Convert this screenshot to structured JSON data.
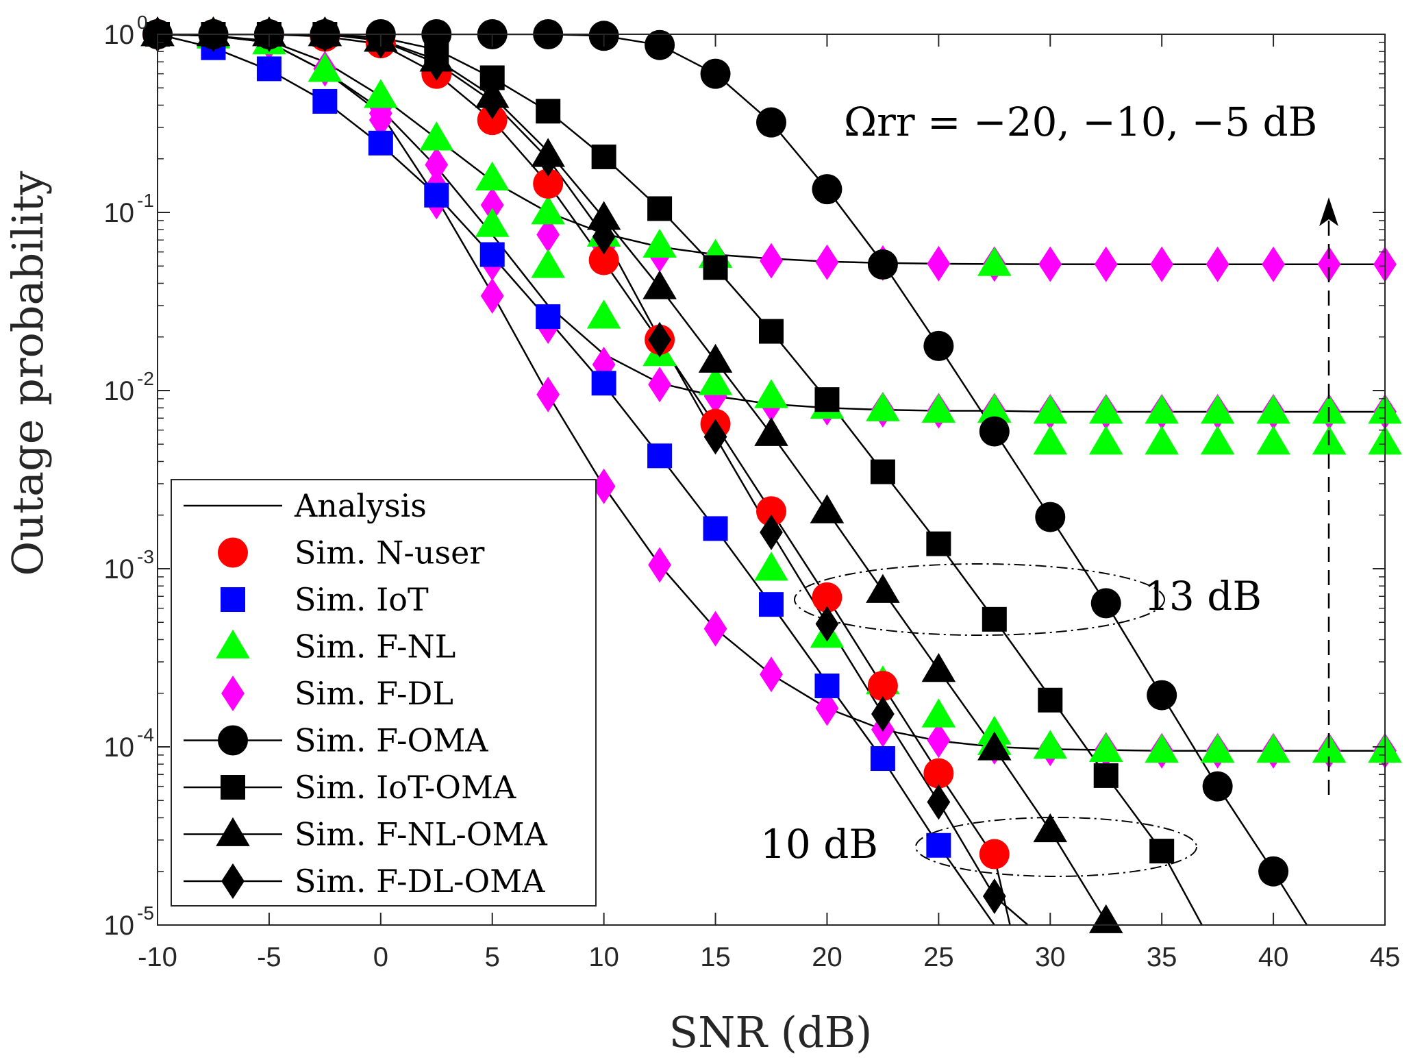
{
  "chart_data": {
    "type": "line",
    "xlabel": "SNR (dB)",
    "ylabel": "Outage probability",
    "xlim": [
      -10,
      45
    ],
    "ylim": [
      1e-05,
      1
    ],
    "yscale": "log",
    "x_ticks": [
      -10,
      -5,
      0,
      5,
      10,
      15,
      20,
      25,
      30,
      35,
      40,
      45
    ],
    "x_tick_labels": [
      "-10",
      "-5",
      "0",
      "5",
      "10",
      "15",
      "20",
      "25",
      "30",
      "35",
      "40",
      "45"
    ],
    "y_ticks": [
      {
        "value": 1e-05,
        "base": "10",
        "exp": "-5"
      },
      {
        "value": 0.0001,
        "base": "10",
        "exp": "-4"
      },
      {
        "value": 0.001,
        "base": "10",
        "exp": "-3"
      },
      {
        "value": 0.01,
        "base": "10",
        "exp": "-2"
      },
      {
        "value": 0.1,
        "base": "10",
        "exp": "-1"
      },
      {
        "value": 1,
        "base": "10",
        "exp": "0"
      }
    ],
    "grid": false,
    "legend_position": "bottom-left",
    "legend": [
      {
        "label": "Analysis",
        "marker": "none",
        "color": "#000000",
        "line": true
      },
      {
        "label": "Sim.  N-user",
        "marker": "circle",
        "color": "#ff0000",
        "line": false
      },
      {
        "label": "Sim.  IoT",
        "marker": "square",
        "color": "#0000ff",
        "line": false
      },
      {
        "label": "Sim.  F-NL",
        "marker": "triangle",
        "color": "#00ff00",
        "line": false
      },
      {
        "label": "Sim.  F-DL",
        "marker": "diamond",
        "color": "#ff00ff",
        "line": false
      },
      {
        "label": "Sim.  F-OMA",
        "marker": "circle",
        "color": "#000000",
        "line": true
      },
      {
        "label": "Sim.  IoT-OMA",
        "marker": "square",
        "color": "#000000",
        "line": true
      },
      {
        "label": "Sim.  F-NL-OMA",
        "marker": "triangle",
        "color": "#000000",
        "line": true
      },
      {
        "label": "Sim.  F-DL-OMA",
        "marker": "diamond",
        "color": "#000000",
        "line": true
      }
    ],
    "annotations": {
      "omega": "Ωrr = −20, −10, −5 dB",
      "label_13db": "13 dB",
      "label_10db": "10 dB"
    },
    "analysis_curves": [
      {
        "x": [
          -10,
          -7.5,
          -5,
          -2.5,
          0,
          2.5,
          5,
          7.5,
          10,
          12.5,
          15,
          17.5,
          20,
          22.5,
          25,
          27.5,
          30,
          32.5,
          35,
          37.5,
          40,
          41.5
        ],
        "y": [
          1,
          1,
          1,
          1,
          1,
          1,
          1,
          1,
          0.98,
          0.87,
          0.6,
          0.32,
          0.135,
          0.052,
          0.0178,
          0.0059,
          0.00195,
          0.00064,
          0.000195,
          6e-05,
          2e-05,
          1e-05
        ]
      },
      {
        "x": [
          -10,
          -7.5,
          -5,
          -2.5,
          0,
          2.5,
          5,
          7.5,
          10,
          12.5,
          15,
          17.5,
          20,
          22.5,
          25,
          27.5,
          30,
          32.5,
          35,
          36.8
        ],
        "y": [
          1,
          1,
          1,
          1,
          0.96,
          0.82,
          0.57,
          0.37,
          0.205,
          0.105,
          0.049,
          0.0215,
          0.0089,
          0.0035,
          0.00138,
          0.00052,
          0.00019,
          6.9e-05,
          2.6e-05,
          1e-05
        ]
      },
      {
        "x": [
          -10,
          -7.5,
          -5,
          -2.5,
          0,
          2.5,
          5,
          7.5,
          10,
          12.5,
          15,
          17.5,
          20,
          22.5,
          25,
          27.5,
          30,
          32.5,
          33.0
        ],
        "y": [
          1,
          1,
          1,
          1,
          0.93,
          0.72,
          0.45,
          0.22,
          0.093,
          0.038,
          0.0147,
          0.0057,
          0.0021,
          0.00075,
          0.00027,
          9.8e-05,
          3.4e-05,
          1.05e-05,
          1e-05
        ]
      },
      {
        "x": [
          -10,
          -7.5,
          -5,
          -2.5,
          0,
          2.5,
          5,
          7.5,
          10,
          12.5,
          15,
          17.5,
          20,
          22.5,
          25,
          27.5,
          29.0
        ],
        "y": [
          1,
          1,
          1,
          1,
          0.92,
          0.69,
          0.42,
          0.2,
          0.074,
          0.0195,
          0.0055,
          0.0016,
          0.00049,
          0.000153,
          4.9e-05,
          1.45e-05,
          1e-05
        ]
      },
      {
        "x": [
          -10,
          -7.5,
          -5,
          -2.5,
          0,
          2.5,
          5,
          7.5,
          10,
          12.5,
          15,
          17.5,
          20,
          22.5,
          25,
          27.5,
          28.2
        ],
        "y": [
          1,
          1,
          1,
          0.97,
          0.88,
          0.6,
          0.33,
          0.145,
          0.053,
          0.0188,
          0.0064,
          0.0021,
          0.00069,
          0.00022,
          7.1e-05,
          2.4e-05,
          1e-05
        ]
      },
      {
        "x": [
          -10,
          -7.5,
          -5,
          -2.5,
          0,
          2.5,
          5,
          7.5,
          10,
          12.5,
          15,
          17.5,
          20,
          22.5,
          25,
          27.5
        ],
        "y": [
          1,
          0.84,
          0.63,
          0.42,
          0.24,
          0.125,
          0.057,
          0.025,
          0.0108,
          0.0043,
          0.00168,
          0.00063,
          0.00023,
          8.5e-05,
          2.8e-05,
          1e-05
        ]
      },
      {
        "x": [
          -10,
          -7.5,
          -5,
          -2.5,
          0,
          2.5,
          5,
          7.5,
          10,
          12.5,
          15,
          17.5,
          20,
          22.5,
          25,
          27.5,
          30,
          35,
          40,
          45
        ],
        "y": [
          1,
          0.98,
          0.92,
          0.7,
          0.45,
          0.26,
          0.15,
          0.1,
          0.076,
          0.064,
          0.058,
          0.055,
          0.053,
          0.052,
          0.0515,
          0.0513,
          0.0512,
          0.0511,
          0.0511,
          0.0511
        ]
      },
      {
        "x": [
          -10,
          -7.5,
          -5,
          -2.5,
          0,
          2.5,
          5,
          7.5,
          10,
          12.5,
          15,
          17.5,
          20,
          22.5,
          25,
          27.5,
          30,
          35,
          40,
          45
        ],
        "y": [
          1,
          0.98,
          0.9,
          0.62,
          0.38,
          0.18,
          0.075,
          0.03,
          0.016,
          0.011,
          0.0093,
          0.0084,
          0.008,
          0.0078,
          0.0077,
          0.0077,
          0.0076,
          0.0076,
          0.0076,
          0.0076
        ]
      },
      {
        "x": [
          -10,
          -7.5,
          -5,
          -2.5,
          0,
          2.5,
          5,
          7.5,
          10,
          12.5,
          15,
          17.5,
          20,
          22.5,
          25,
          27.5,
          30,
          35,
          40,
          45
        ],
        "y": [
          1,
          0.98,
          0.9,
          0.62,
          0.36,
          0.12,
          0.035,
          0.0095,
          0.0029,
          0.00105,
          0.00046,
          0.000255,
          0.000165,
          0.000125,
          0.000108,
          0.0001,
          9.7e-05,
          9.5e-05,
          9.5e-05,
          9.5e-05
        ]
      }
    ],
    "series": [
      {
        "name": "Sim.  N-user",
        "marker": "circle",
        "color": "#ff0000",
        "x": [
          -10,
          -7.5,
          -5,
          -2.5,
          0,
          2.5,
          5,
          7.5,
          10,
          12.5,
          15,
          17.5,
          20,
          22.5,
          25,
          27.5
        ],
        "y": [
          1,
          1,
          1,
          0.97,
          0.89,
          0.6,
          0.33,
          0.145,
          0.054,
          0.0193,
          0.0065,
          0.0021,
          0.00069,
          0.00022,
          7.1e-05,
          2.5e-05
        ]
      },
      {
        "name": "Sim.  IoT",
        "marker": "square",
        "color": "#0000ff",
        "x": [
          -10,
          -7.5,
          -5,
          -2.5,
          0,
          2.5,
          5,
          7.5,
          10,
          12.5,
          15,
          17.5,
          20,
          22.5,
          25
        ],
        "y": [
          1,
          0.84,
          0.64,
          0.42,
          0.245,
          0.125,
          0.058,
          0.026,
          0.011,
          0.0043,
          0.00168,
          0.00063,
          0.00022,
          8.6e-05,
          2.8e-05
        ]
      },
      {
        "name": "Sim.  F-NL",
        "marker": "triangle",
        "color": "#00ff00",
        "x": [
          -10,
          -7.5,
          -5,
          -2.5,
          0,
          2.5,
          5,
          5,
          7.5,
          7.5,
          10,
          10,
          12.5,
          12.5,
          15,
          15,
          17.5,
          17.5,
          20,
          20,
          22.5,
          22.5,
          25,
          25,
          27.5,
          27.5,
          30,
          32.5,
          35,
          37.5,
          40,
          42.5,
          45,
          27.5,
          30,
          32.5,
          35,
          37.5,
          40,
          42.5,
          45,
          27.5,
          30,
          32.5,
          35,
          37.5,
          40,
          42.5,
          45
        ],
        "y": [
          1,
          0.97,
          0.9,
          0.63,
          0.45,
          0.26,
          0.155,
          0.085,
          0.1,
          0.05,
          0.075,
          0.026,
          0.065,
          0.016,
          0.057,
          0.011,
          0.0093,
          0.001,
          0.0081,
          0.00042,
          0.00785,
          0.00023,
          0.0077,
          0.00015,
          0.0077,
          0.00012,
          0.0051,
          0.0051,
          0.0051,
          0.0051,
          0.0051,
          0.0051,
          0.0051,
          0.0513,
          0.0076,
          0.0076,
          0.0076,
          0.0076,
          0.0076,
          0.0076,
          0.0076,
          0.000105,
          0.0001,
          9.6e-05,
          9.5e-05,
          9.5e-05,
          9.5e-05,
          9.5e-05,
          9.5e-05
        ]
      },
      {
        "name": "Sim.  F-DL",
        "marker": "diamond",
        "color": "#ff00ff",
        "x": [
          -10,
          -7.5,
          -5,
          -2.5,
          0,
          2.5,
          5,
          7.5,
          10,
          12.5,
          15,
          17.5,
          20,
          22.5,
          25,
          27.5,
          30,
          32.5,
          35,
          37.5,
          40,
          42.5,
          45,
          0,
          2.5,
          5,
          7.5,
          10,
          12.5,
          15,
          17.5,
          20,
          22.5,
          25,
          27.5,
          30,
          32.5,
          35,
          37.5,
          40,
          42.5,
          45,
          0,
          2.5,
          5,
          7.5,
          10,
          12.5,
          15,
          17.5,
          20,
          22.5,
          25,
          27.5,
          30,
          32.5,
          35,
          37.5,
          40,
          42.5,
          45
        ],
        "y": [
          1,
          0.98,
          0.9,
          0.64,
          0.36,
          0.115,
          0.034,
          0.0095,
          0.0029,
          0.00105,
          0.00046,
          0.000255,
          0.000165,
          0.000125,
          0.000109,
          0.0001,
          9.8e-05,
          9.6e-05,
          9.5e-05,
          9.5e-05,
          9.5e-05,
          9.5e-05,
          9.5e-05,
          0.39,
          0.185,
          0.11,
          0.075,
          0.064,
          0.058,
          0.056,
          0.0535,
          0.0525,
          0.052,
          0.0515,
          0.0513,
          0.0512,
          0.0511,
          0.0511,
          0.0511,
          0.0511,
          0.0511,
          0.0511,
          0.33,
          0.14,
          0.052,
          0.023,
          0.014,
          0.0108,
          0.0093,
          0.0084,
          0.008,
          0.0078,
          0.0077,
          0.0077,
          0.0076,
          0.0076,
          0.0076,
          0.0076,
          0.0076,
          0.0076,
          0.0076
        ]
      },
      {
        "name": "Sim.  F-OMA",
        "marker": "circle",
        "color": "#000000",
        "x": [
          -10,
          -7.5,
          -5,
          -2.5,
          0,
          2.5,
          5,
          7.5,
          10,
          12.5,
          15,
          17.5,
          20,
          22.5,
          25,
          27.5,
          30,
          32.5,
          35,
          37.5,
          40
        ],
        "y": [
          1,
          1,
          1,
          1,
          1,
          1,
          1,
          1,
          0.98,
          0.87,
          0.6,
          0.32,
          0.135,
          0.051,
          0.0178,
          0.0059,
          0.00195,
          0.00064,
          0.000195,
          6e-05,
          2e-05
        ]
      },
      {
        "name": "Sim.  IoT-OMA",
        "marker": "square",
        "color": "#000000",
        "x": [
          -10,
          -7.5,
          -5,
          -2.5,
          0,
          2.5,
          5,
          7.5,
          10,
          12.5,
          15,
          17.5,
          20,
          22.5,
          25,
          27.5,
          30,
          32.5,
          35
        ],
        "y": [
          1,
          1,
          1,
          1,
          0.96,
          0.8,
          0.57,
          0.37,
          0.205,
          0.105,
          0.049,
          0.0215,
          0.0089,
          0.0035,
          0.00138,
          0.00052,
          0.000183,
          6.9e-05,
          2.6e-05
        ]
      },
      {
        "name": "Sim.  F-NL-OMA",
        "marker": "triangle",
        "color": "#000000",
        "x": [
          -10,
          -7.5,
          -5,
          -2.5,
          0,
          2.5,
          5,
          7.5,
          10,
          12.5,
          15,
          17.5,
          20,
          22.5,
          25,
          27.5,
          30,
          32.5
        ],
        "y": [
          1,
          1,
          1,
          1,
          0.93,
          0.72,
          0.45,
          0.21,
          0.093,
          0.038,
          0.0147,
          0.0057,
          0.0021,
          0.00075,
          0.00027,
          9.8e-05,
          3.4e-05,
          1.05e-05
        ]
      },
      {
        "name": "Sim.  F-DL-OMA",
        "marker": "diamond",
        "color": "#000000",
        "x": [
          -10,
          -7.5,
          -5,
          -2.5,
          0,
          2.5,
          5,
          7.5,
          10,
          12.5,
          15,
          17.5,
          20,
          22.5,
          25,
          27.5
        ],
        "y": [
          1,
          1,
          1,
          1,
          0.92,
          0.69,
          0.42,
          0.2,
          0.073,
          0.0193,
          0.0055,
          0.0016,
          0.00049,
          0.000153,
          4.9e-05,
          1.45e-05
        ]
      }
    ]
  }
}
